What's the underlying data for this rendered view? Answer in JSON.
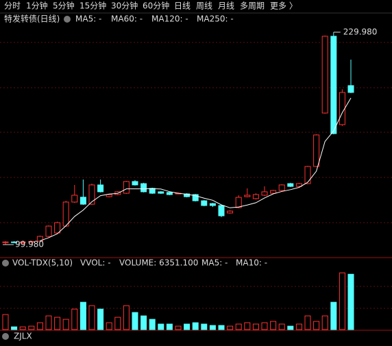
{
  "tabs": [
    "分时",
    "1分钟",
    "5分钟",
    "15分钟",
    "30分钟",
    "60分钟",
    "日线",
    "周线",
    "月线",
    "多周期",
    "更多 〉"
  ],
  "chart_data": [
    {
      "type": "candlestick",
      "title": "特发转债(日线)",
      "legend": [
        {
          "name": "MA5: -",
          "color": "#ffffff"
        },
        {
          "name": "MA60: -",
          "color": "#e8c020"
        },
        {
          "name": "MA120: -",
          "color": "#d030d0"
        },
        {
          "name": "MA250: -",
          "color": "#20c020"
        }
      ],
      "up_color": "#ff3232",
      "down_color": "#54ffff",
      "ylim": [
        92.43,
        237.1
      ],
      "open": [
        101.2,
        101.6,
        101.2,
        101.6,
        102.1,
        105.0,
        107.1,
        111.3,
        126.0,
        129.0,
        124.7,
        136.5,
        129.3,
        130.6,
        131.4,
        138.6,
        137.3,
        134.4,
        132.3,
        131.9,
        131.4,
        131.0,
        130.6,
        126.8,
        125.1,
        123.9,
        119.3,
        122.6,
        129.3,
        128.1,
        130.2,
        131.4,
        133.1,
        137.3,
        135.6,
        137.3,
        147.8,
        180.5,
        227.5,
        173.4,
        197.3
      ],
      "high": [
        102.1,
        102.1,
        101.6,
        102.1,
        105.5,
        111.7,
        114.0,
        126.8,
        136.5,
        139.8,
        137.3,
        139.8,
        131.0,
        132.7,
        139.0,
        139.4,
        137.8,
        134.8,
        132.7,
        132.3,
        131.9,
        131.4,
        131.0,
        127.2,
        125.5,
        124.3,
        121.0,
        130.2,
        134.4,
        131.4,
        135.6,
        133.5,
        136.9,
        137.8,
        137.8,
        148.2,
        167.5,
        227.9,
        229.98,
        195.0,
        213.2
      ],
      "low": [
        99.98,
        100.8,
        100.4,
        101.2,
        101.6,
        104.6,
        106.7,
        110.9,
        125.5,
        124.3,
        124.3,
        131.9,
        128.9,
        130.2,
        131.0,
        136.1,
        131.9,
        131.0,
        131.0,
        130.2,
        131.0,
        128.9,
        126.4,
        123.5,
        123.0,
        116.8,
        118.9,
        122.2,
        128.9,
        127.6,
        129.7,
        131.0,
        132.7,
        135.2,
        135.2,
        136.9,
        147.4,
        180.1,
        167.5,
        172.6,
        192.7
      ],
      "close": [
        101.6,
        101.2,
        101.6,
        101.9,
        105.0,
        111.3,
        113.4,
        126.0,
        130.2,
        124.7,
        136.5,
        132.3,
        130.6,
        132.3,
        138.6,
        136.5,
        132.3,
        131.4,
        131.4,
        130.6,
        131.4,
        129.3,
        126.8,
        123.9,
        123.9,
        117.6,
        120.5,
        128.9,
        130.2,
        130.6,
        132.3,
        133.1,
        136.5,
        135.6,
        137.3,
        147.8,
        167.1,
        227.5,
        167.9,
        193.1,
        193.1
      ],
      "ma5": [
        null,
        null,
        null,
        null,
        102.3,
        104.2,
        106.6,
        111.5,
        117.2,
        121.1,
        126.2,
        129.9,
        130.9,
        131.3,
        134.1,
        134.1,
        134.1,
        134.2,
        134.0,
        132.4,
        131.4,
        130.8,
        129.9,
        128.4,
        127.1,
        124.3,
        122.5,
        123.0,
        124.2,
        125.6,
        128.5,
        131.0,
        132.5,
        133.6,
        135.0,
        138.1,
        144.9,
        163.1,
        169.5,
        180.7,
        189.7
      ],
      "annotations": [
        {
          "value": 229.98,
          "label": "229.980",
          "index": 38
        },
        {
          "value": 99.98,
          "label": "99.980",
          "index": 0
        }
      ]
    },
    {
      "type": "volume",
      "legend": [
        {
          "name": "VOL-TDX(5,10)",
          "color": "#dddddd"
        },
        {
          "name": "VVOL: -",
          "color": "#dddddd"
        },
        {
          "name": "VOLUME: 6351.100",
          "color": "#e8c020"
        },
        {
          "name": "MA5: -",
          "color": "#e8c020"
        },
        {
          "name": "MA10: -",
          "color": "#d030d0"
        }
      ],
      "ylim": [
        0,
        7000
      ],
      "values": [
        1725,
        310,
        310,
        390,
        785,
        1570,
        1410,
        1175,
        2350,
        3135,
        2745,
        2350,
        785,
        1410,
        2745,
        1960,
        1570,
        1175,
        630,
        630,
        390,
        630,
        785,
        630,
        470,
        470,
        390,
        630,
        785,
        630,
        785,
        940,
        630,
        390,
        630,
        1570,
        940,
        1570,
        3135,
        6510,
        6351.1
      ]
    },
    {
      "type": "indicator",
      "title": "ZJLX"
    }
  ]
}
